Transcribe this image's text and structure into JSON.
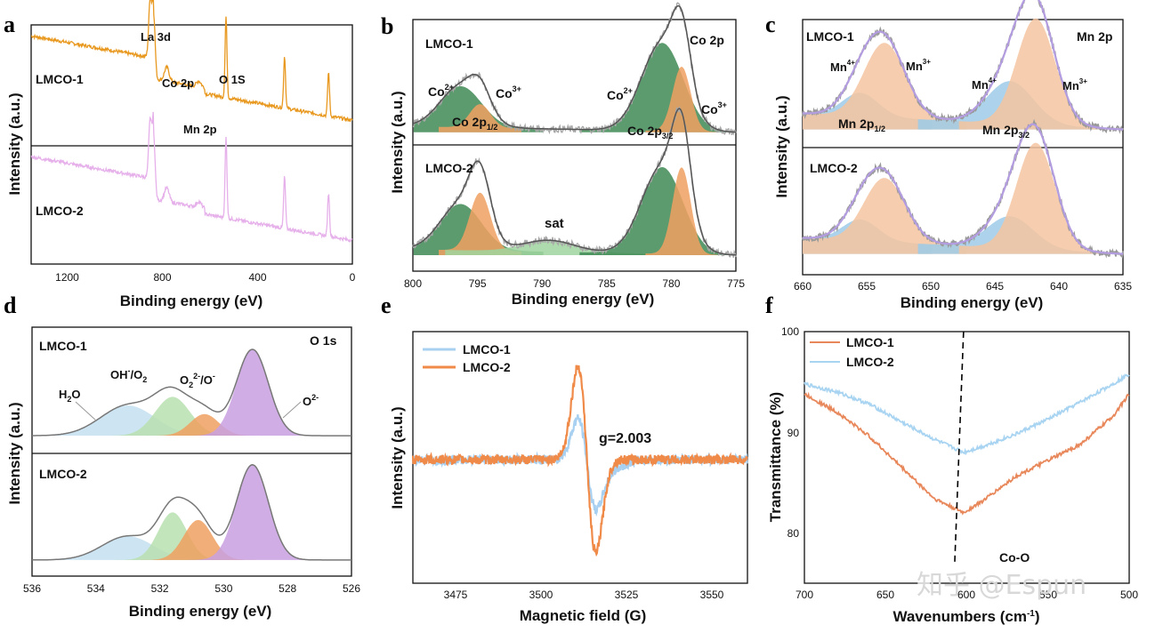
{
  "figure": {
    "panel_labels": [
      "a",
      "b",
      "c",
      "d",
      "e",
      "f"
    ],
    "watermark": "知乎 @Espun"
  },
  "chart_data": [
    {
      "panel": "a",
      "type": "line",
      "xlabel": "Binding energy (eV)",
      "ylabel": "Intensity (a.u.)",
      "xlim": [
        1350,
        0
      ],
      "xticks": [
        "1200",
        "800",
        "400",
        "0"
      ],
      "samples": [
        "LMCO-1",
        "LMCO-2"
      ],
      "series": [
        {
          "name": "LMCO-1",
          "color": "#e8981e",
          "baseline": 0.72,
          "decay": 0.55,
          "peaks": [
            {
              "x": 835,
              "h": 0.55,
              "w": 6
            },
            {
              "x": 850,
              "h": 0.5,
              "w": 6
            },
            {
              "x": 780,
              "h": 0.12,
              "w": 10
            },
            {
              "x": 645,
              "h": 0.05,
              "w": 10
            },
            {
              "x": 531,
              "h": 0.7,
              "w": 4
            },
            {
              "x": 285,
              "h": 0.45,
              "w": 4
            },
            {
              "x": 100,
              "h": 0.38,
              "w": 4
            }
          ]
        },
        {
          "name": "LMCO-2",
          "color": "#e6b0ea",
          "baseline": 0.72,
          "decay": 0.55,
          "peaks": [
            {
              "x": 835,
              "h": 0.55,
              "w": 6
            },
            {
              "x": 850,
              "h": 0.5,
              "w": 6
            },
            {
              "x": 780,
              "h": 0.12,
              "w": 10
            },
            {
              "x": 645,
              "h": 0.05,
              "w": 10
            },
            {
              "x": 531,
              "h": 0.7,
              "w": 4
            },
            {
              "x": 285,
              "h": 0.45,
              "w": 4
            },
            {
              "x": 100,
              "h": 0.38,
              "w": 4
            }
          ]
        }
      ],
      "annotations": [
        "La 3d",
        "Co 2p",
        "O 1S",
        "Mn 2p"
      ]
    },
    {
      "panel": "b",
      "type": "line",
      "xlabel": "Binding energy (eV)",
      "ylabel": "Intensity (a.u.)",
      "xlim": [
        800,
        775
      ],
      "xticks": [
        "800",
        "795",
        "790",
        "785",
        "780",
        "775"
      ],
      "title": "Co 2p",
      "samples": [
        "LMCO-1",
        "LMCO-2"
      ],
      "fit_colors": {
        "Co2+": "#3f8a55",
        "Co3+": "#f0a060",
        "sat": "#9fd59f"
      },
      "components": {
        "LMCO-1": [
          {
            "label": "Co2+",
            "center": 796.3,
            "height": 0.35,
            "width": 1.6
          },
          {
            "label": "Co3+",
            "center": 794.8,
            "height": 0.2,
            "width": 0.8
          },
          {
            "label": "Co2+",
            "center": 780.7,
            "height": 0.75,
            "width": 1.6
          },
          {
            "label": "Co3+",
            "center": 779.2,
            "height": 0.55,
            "width": 0.7
          }
        ],
        "LMCO-2": [
          {
            "label": "Co2+",
            "center": 796.3,
            "height": 0.4,
            "width": 1.6
          },
          {
            "label": "Co3+",
            "center": 794.8,
            "height": 0.5,
            "width": 0.8
          },
          {
            "label": "sat",
            "center": 789.5,
            "height": 0.1,
            "width": 2.0
          },
          {
            "label": "Co2+",
            "center": 780.7,
            "height": 0.75,
            "width": 1.6
          },
          {
            "label": "Co3+",
            "center": 779.2,
            "height": 0.75,
            "width": 0.7
          }
        ]
      }
    },
    {
      "panel": "c",
      "type": "line",
      "xlabel": "Binding energy (eV)",
      "ylabel": "Intensity (a.u.)",
      "xlim": [
        660,
        635
      ],
      "xticks": [
        "660",
        "655",
        "650",
        "645",
        "640",
        "635"
      ],
      "title": "Mn 2p",
      "samples": [
        "LMCO-1",
        "LMCO-2"
      ],
      "fit_colors": {
        "Mn4+": "#9ecbe8",
        "Mn3+": "#f5c4a0"
      },
      "components": {
        "LMCO-1": [
          {
            "label": "Mn4+",
            "center": 655.5,
            "height": 0.22,
            "width": 1.4
          },
          {
            "label": "Mn3+",
            "center": 653.6,
            "height": 0.7,
            "width": 1.6
          },
          {
            "label": "Mn4+",
            "center": 643.8,
            "height": 0.4,
            "width": 1.8
          },
          {
            "label": "Mn3+",
            "center": 641.8,
            "height": 1.0,
            "width": 1.5
          }
        ],
        "LMCO-2": [
          {
            "label": "Mn4+",
            "center": 655.5,
            "height": 0.2,
            "width": 1.4
          },
          {
            "label": "Mn3+",
            "center": 653.6,
            "height": 0.6,
            "width": 1.6
          },
          {
            "label": "Mn4+",
            "center": 643.8,
            "height": 0.3,
            "width": 1.8
          },
          {
            "label": "Mn3+",
            "center": 641.8,
            "height": 1.0,
            "width": 1.5
          }
        ]
      }
    },
    {
      "panel": "d",
      "type": "line",
      "xlabel": "Binding energy (eV)",
      "ylabel": "Intensity (a.u.)",
      "xlim": [
        536,
        526
      ],
      "xticks": [
        "536",
        "534",
        "532",
        "530",
        "528",
        "526"
      ],
      "title": "O 1s",
      "samples": [
        "LMCO-1",
        "LMCO-2"
      ],
      "fit_colors": {
        "H2O": "#c4e0f0",
        "OH-/O2": "#b8e0b0",
        "O22-/O-": "#f0a060",
        "O2-": "#c8a0e0"
      },
      "components": {
        "LMCO-1": [
          {
            "label": "H2O",
            "center": 533.0,
            "height": 0.35,
            "width": 0.85
          },
          {
            "label": "OH-/O2",
            "center": 531.6,
            "height": 0.45,
            "width": 0.55
          },
          {
            "label": "O22-/O-",
            "center": 530.6,
            "height": 0.25,
            "width": 0.45
          },
          {
            "label": "O2-",
            "center": 529.1,
            "height": 1.0,
            "width": 0.5
          }
        ],
        "LMCO-2": [
          {
            "label": "H2O",
            "center": 533.0,
            "height": 0.25,
            "width": 0.8
          },
          {
            "label": "OH-/O2",
            "center": 531.6,
            "height": 0.5,
            "width": 0.45
          },
          {
            "label": "O22-/O-",
            "center": 530.8,
            "height": 0.42,
            "width": 0.45
          },
          {
            "label": "O2-",
            "center": 529.1,
            "height": 1.0,
            "width": 0.5
          }
        ]
      }
    },
    {
      "panel": "e",
      "type": "line",
      "xlabel": "Magnetic field (G)",
      "ylabel": "Intensity (a.u.)",
      "xlim": [
        3462,
        3560
      ],
      "xticks": [
        "3475",
        "3500",
        "3525",
        "3550"
      ],
      "legend": [
        {
          "name": "LMCO-1",
          "color": "#a8d0f0"
        },
        {
          "name": "LMCO-2",
          "color": "#f08a48"
        }
      ],
      "annotation": "g=2.003",
      "series": [
        {
          "name": "LMCO-1",
          "center": 3513,
          "amplitude": 0.45
        },
        {
          "name": "LMCO-2",
          "center": 3513,
          "amplitude": 1.0
        }
      ]
    },
    {
      "panel": "f",
      "type": "line",
      "xlabel": "Wavenumbers (cm-1)",
      "ylabel": "Transmittance (%)",
      "xlim": [
        700,
        500
      ],
      "ylim": [
        75,
        100
      ],
      "xticks": [
        "700",
        "650",
        "600",
        "550",
        "500"
      ],
      "yticks": [
        "100",
        "90",
        "80"
      ],
      "legend": [
        {
          "name": "LMCO-1",
          "color": "#e8875a"
        },
        {
          "name": "LMCO-2",
          "color": "#a8d4f2"
        }
      ],
      "annotation": "Co-O",
      "marker_x": 602,
      "series": [
        {
          "name": "LMCO-1",
          "x": [
            700,
            680,
            660,
            640,
            620,
            602,
            590,
            570,
            550,
            530,
            510,
            500
          ],
          "y": [
            93.8,
            92.0,
            89.6,
            86.5,
            83.4,
            82.0,
            83.2,
            85.6,
            87.2,
            88.8,
            91.6,
            93.8
          ]
        },
        {
          "name": "LMCO-2",
          "x": [
            700,
            680,
            660,
            640,
            620,
            602,
            590,
            570,
            550,
            530,
            510,
            500
          ],
          "y": [
            94.8,
            94.0,
            92.8,
            91.0,
            89.3,
            88.0,
            88.6,
            89.8,
            91.3,
            93.0,
            94.8,
            95.8
          ]
        }
      ]
    }
  ]
}
